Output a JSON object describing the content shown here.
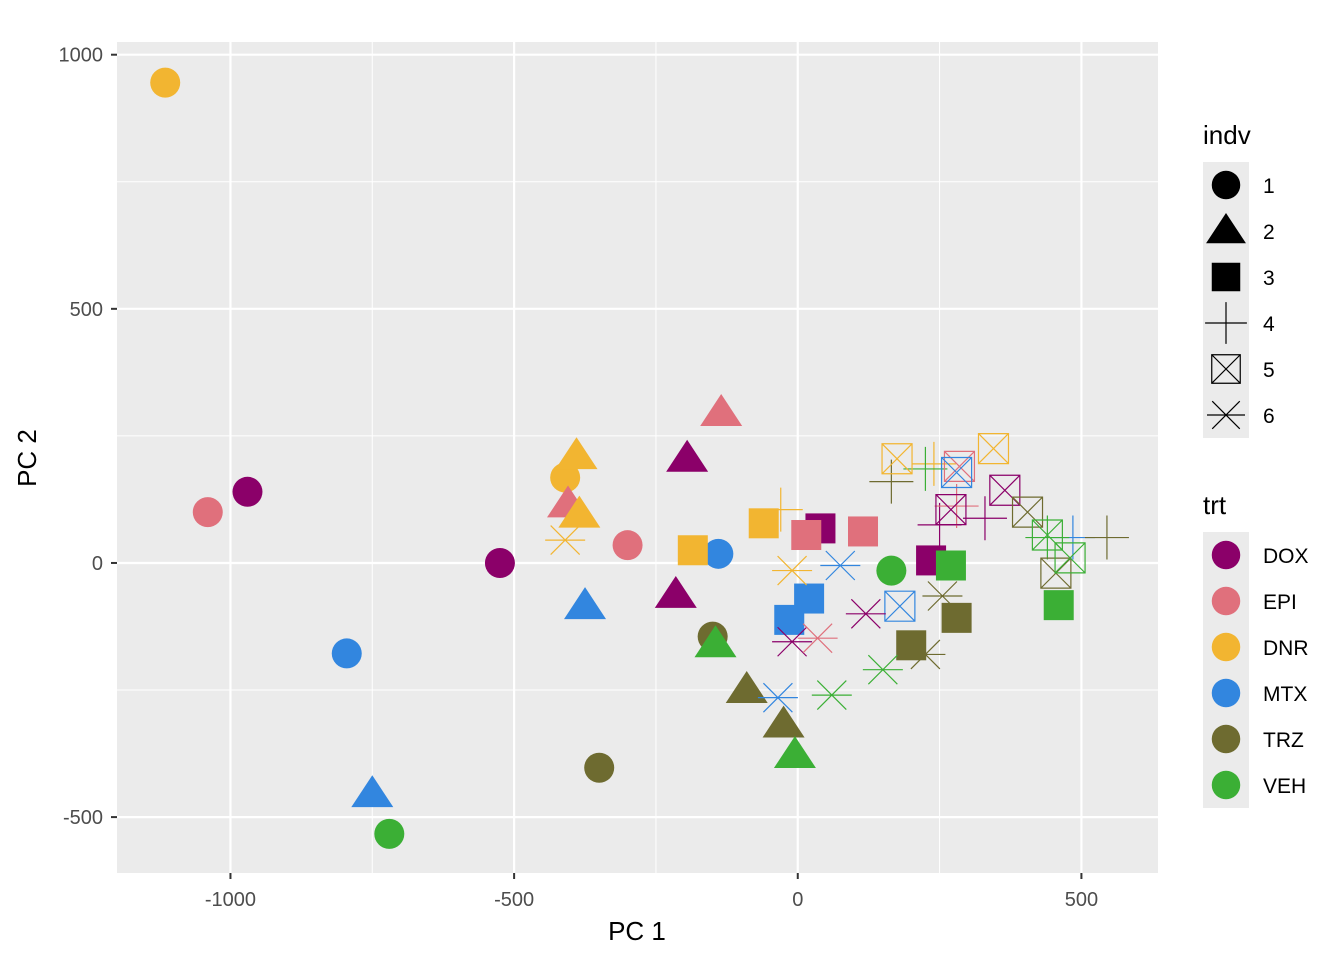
{
  "chart_data": {
    "type": "scatter",
    "title": "",
    "xlabel": "PC 1",
    "ylabel": "PC 2",
    "xlim": [
      -1200,
      635
    ],
    "ylim": [
      -610,
      1025
    ],
    "xticks": [
      -1000,
      -500,
      0,
      500
    ],
    "yticks": [
      -500,
      0,
      500,
      1000
    ],
    "grid": true,
    "legends": [
      {
        "title": "indv",
        "aesthetic": "shape",
        "entries": [
          {
            "label": "1",
            "shape": "circle"
          },
          {
            "label": "2",
            "shape": "triangle"
          },
          {
            "label": "3",
            "shape": "square"
          },
          {
            "label": "4",
            "shape": "plus"
          },
          {
            "label": "5",
            "shape": "boxcross"
          },
          {
            "label": "6",
            "shape": "asterisk"
          }
        ]
      },
      {
        "title": "trt",
        "aesthetic": "color",
        "entries": [
          {
            "label": "DOX",
            "color": "#8B0069"
          },
          {
            "label": "EPI",
            "color": "#E0707C"
          },
          {
            "label": "DNR",
            "color": "#F2B531"
          },
          {
            "label": "MTX",
            "color": "#3286DF"
          },
          {
            "label": "TRZ",
            "color": "#6E6B30"
          },
          {
            "label": "VEH",
            "color": "#3BAF35"
          }
        ]
      }
    ],
    "points": [
      {
        "x": -970,
        "y": 140,
        "indv": "1",
        "trt": "DOX"
      },
      {
        "x": -525,
        "y": 0,
        "indv": "1",
        "trt": "DOX"
      },
      {
        "x": -1040,
        "y": 100,
        "indv": "1",
        "trt": "EPI"
      },
      {
        "x": -300,
        "y": 35,
        "indv": "1",
        "trt": "EPI"
      },
      {
        "x": -1115,
        "y": 945,
        "indv": "1",
        "trt": "DNR"
      },
      {
        "x": -410,
        "y": 168,
        "indv": "1",
        "trt": "DNR"
      },
      {
        "x": -795,
        "y": -178,
        "indv": "1",
        "trt": "MTX"
      },
      {
        "x": -140,
        "y": 18,
        "indv": "1",
        "trt": "MTX"
      },
      {
        "x": -350,
        "y": -403,
        "indv": "1",
        "trt": "TRZ"
      },
      {
        "x": -150,
        "y": -145,
        "indv": "1",
        "trt": "TRZ"
      },
      {
        "x": -720,
        "y": -533,
        "indv": "1",
        "trt": "VEH"
      },
      {
        "x": 165,
        "y": -15,
        "indv": "1",
        "trt": "VEH"
      },
      {
        "x": -195,
        "y": 205,
        "indv": "2",
        "trt": "DOX"
      },
      {
        "x": -215,
        "y": -63,
        "indv": "2",
        "trt": "DOX"
      },
      {
        "x": -135,
        "y": 295,
        "indv": "2",
        "trt": "EPI"
      },
      {
        "x": -405,
        "y": 115,
        "indv": "2",
        "trt": "EPI"
      },
      {
        "x": -390,
        "y": 210,
        "indv": "2",
        "trt": "DNR"
      },
      {
        "x": -385,
        "y": 95,
        "indv": "2",
        "trt": "DNR"
      },
      {
        "x": -375,
        "y": -85,
        "indv": "2",
        "trt": "MTX"
      },
      {
        "x": -750,
        "y": -455,
        "indv": "2",
        "trt": "MTX"
      },
      {
        "x": -90,
        "y": -250,
        "indv": "2",
        "trt": "TRZ"
      },
      {
        "x": -25,
        "y": -318,
        "indv": "2",
        "trt": "TRZ"
      },
      {
        "x": -145,
        "y": -160,
        "indv": "2",
        "trt": "VEH"
      },
      {
        "x": -5,
        "y": -378,
        "indv": "2",
        "trt": "VEH"
      },
      {
        "x": 40,
        "y": 68,
        "indv": "3",
        "trt": "DOX"
      },
      {
        "x": 235,
        "y": 5,
        "indv": "3",
        "trt": "DOX"
      },
      {
        "x": 15,
        "y": 55,
        "indv": "3",
        "trt": "EPI"
      },
      {
        "x": 115,
        "y": 62,
        "indv": "3",
        "trt": "EPI"
      },
      {
        "x": -60,
        "y": 78,
        "indv": "3",
        "trt": "DNR"
      },
      {
        "x": -185,
        "y": 25,
        "indv": "3",
        "trt": "DNR"
      },
      {
        "x": 20,
        "y": -70,
        "indv": "3",
        "trt": "MTX"
      },
      {
        "x": -15,
        "y": -112,
        "indv": "3",
        "trt": "MTX"
      },
      {
        "x": 200,
        "y": -162,
        "indv": "3",
        "trt": "TRZ"
      },
      {
        "x": 280,
        "y": -108,
        "indv": "3",
        "trt": "TRZ"
      },
      {
        "x": 460,
        "y": -83,
        "indv": "3",
        "trt": "VEH"
      },
      {
        "x": 270,
        "y": -5,
        "indv": "3",
        "trt": "VEH"
      },
      {
        "x": 250,
        "y": 75,
        "indv": "4",
        "trt": "DOX"
      },
      {
        "x": 330,
        "y": 88,
        "indv": "4",
        "trt": "DOX"
      },
      {
        "x": 280,
        "y": 112,
        "indv": "4",
        "trt": "EPI"
      },
      {
        "x": -30,
        "y": 105,
        "indv": "4",
        "trt": "DNR"
      },
      {
        "x": 240,
        "y": 195,
        "indv": "4",
        "trt": "DNR"
      },
      {
        "x": 485,
        "y": 50,
        "indv": "4",
        "trt": "MTX"
      },
      {
        "x": 165,
        "y": 160,
        "indv": "4",
        "trt": "TRZ"
      },
      {
        "x": 545,
        "y": 50,
        "indv": "4",
        "trt": "TRZ"
      },
      {
        "x": 225,
        "y": 185,
        "indv": "4",
        "trt": "VEH"
      },
      {
        "x": 440,
        "y": 50,
        "indv": "4",
        "trt": "VEH"
      },
      {
        "x": 365,
        "y": 143,
        "indv": "5",
        "trt": "DOX"
      },
      {
        "x": 270,
        "y": 105,
        "indv": "5",
        "trt": "DOX"
      },
      {
        "x": 285,
        "y": 190,
        "indv": "5",
        "trt": "EPI"
      },
      {
        "x": 345,
        "y": 225,
        "indv": "5",
        "trt": "DNR"
      },
      {
        "x": 175,
        "y": 205,
        "indv": "5",
        "trt": "DNR"
      },
      {
        "x": 280,
        "y": 178,
        "indv": "5",
        "trt": "MTX"
      },
      {
        "x": 180,
        "y": -85,
        "indv": "5",
        "trt": "MTX"
      },
      {
        "x": 405,
        "y": 100,
        "indv": "5",
        "trt": "TRZ"
      },
      {
        "x": 455,
        "y": -20,
        "indv": "5",
        "trt": "TRZ"
      },
      {
        "x": 440,
        "y": 55,
        "indv": "5",
        "trt": "VEH"
      },
      {
        "x": 480,
        "y": 10,
        "indv": "5",
        "trt": "VEH"
      },
      {
        "x": 120,
        "y": -100,
        "indv": "6",
        "trt": "DOX"
      },
      {
        "x": -10,
        "y": -155,
        "indv": "6",
        "trt": "DOX"
      },
      {
        "x": 35,
        "y": -148,
        "indv": "6",
        "trt": "EPI"
      },
      {
        "x": -410,
        "y": 45,
        "indv": "6",
        "trt": "DNR"
      },
      {
        "x": -10,
        "y": -15,
        "indv": "6",
        "trt": "DNR"
      },
      {
        "x": 75,
        "y": -5,
        "indv": "6",
        "trt": "MTX"
      },
      {
        "x": -35,
        "y": -265,
        "indv": "6",
        "trt": "MTX"
      },
      {
        "x": 255,
        "y": -65,
        "indv": "6",
        "trt": "TRZ"
      },
      {
        "x": 225,
        "y": -180,
        "indv": "6",
        "trt": "TRZ"
      },
      {
        "x": 150,
        "y": -210,
        "indv": "6",
        "trt": "VEH"
      },
      {
        "x": 60,
        "y": -260,
        "indv": "6",
        "trt": "VEH"
      }
    ]
  }
}
